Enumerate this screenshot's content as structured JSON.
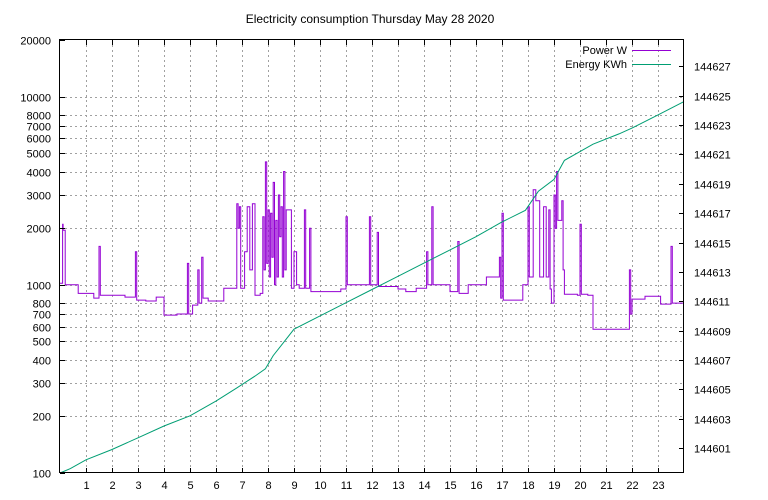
{
  "chart_data": {
    "type": "line",
    "title": "Electricity consumption Thursday May 28 2020",
    "xlabel": "",
    "ylabel": "",
    "y2label": "",
    "xlim": [
      0,
      24
    ],
    "ylim": [
      100,
      20000
    ],
    "y2lim": [
      144599.3,
      144628.8
    ],
    "yscale": "log",
    "grid": true,
    "legend_position": "top-right",
    "x_ticks": [
      "1",
      "2",
      "3",
      "4",
      "5",
      "6",
      "7",
      "8",
      "9",
      "10",
      "11",
      "12",
      "13",
      "14",
      "15",
      "16",
      "17",
      "18",
      "19",
      "20",
      "21",
      "22",
      "23"
    ],
    "y_ticks": [
      {
        "value": 100,
        "label": "100"
      },
      {
        "value": 200,
        "label": "200"
      },
      {
        "value": 300,
        "label": "300"
      },
      {
        "value": 400,
        "label": "400"
      },
      {
        "value": 500,
        "label": "500"
      },
      {
        "value": 600,
        "label": "600"
      },
      {
        "value": 700,
        "label": "700"
      },
      {
        "value": 800,
        "label": "800"
      },
      {
        "value": 1000,
        "label": "1000"
      },
      {
        "value": 2000,
        "label": "2000"
      },
      {
        "value": 3000,
        "label": "3000"
      },
      {
        "value": 4000,
        "label": "4000"
      },
      {
        "value": 5000,
        "label": "5000"
      },
      {
        "value": 6000,
        "label": "6000"
      },
      {
        "value": 7000,
        "label": "7000"
      },
      {
        "value": 8000,
        "label": "8000"
      },
      {
        "value": 10000,
        "label": "10000"
      },
      {
        "value": 20000,
        "label": "20000"
      }
    ],
    "y2_ticks": [
      {
        "value": 144601,
        "label": "144601"
      },
      {
        "value": 144603,
        "label": "144603"
      },
      {
        "value": 144605,
        "label": "144605"
      },
      {
        "value": 144607,
        "label": "144607"
      },
      {
        "value": 144609,
        "label": "144609"
      },
      {
        "value": 144611,
        "label": "144611"
      },
      {
        "value": 144613,
        "label": "144613"
      },
      {
        "value": 144615,
        "label": "144615"
      },
      {
        "value": 144617,
        "label": "144617"
      },
      {
        "value": 144619,
        "label": "144619"
      },
      {
        "value": 144621,
        "label": "144621"
      },
      {
        "value": 144623,
        "label": "144623"
      },
      {
        "value": 144625,
        "label": "144625"
      },
      {
        "value": 144627,
        "label": "144627"
      }
    ],
    "series": [
      {
        "name": "Power W",
        "color": "#9400d3",
        "axis": "y",
        "step": true,
        "points": [
          [
            0,
            1020
          ],
          [
            0.1,
            2100
          ],
          [
            0.12,
            1950
          ],
          [
            0.2,
            1000
          ],
          [
            0.7,
            900
          ],
          [
            1.3,
            850
          ],
          [
            1.5,
            1600
          ],
          [
            1.55,
            880
          ],
          [
            2.0,
            880
          ],
          [
            2.5,
            860
          ],
          [
            2.9,
            1500
          ],
          [
            2.95,
            830
          ],
          [
            3.3,
            820
          ],
          [
            3.7,
            860
          ],
          [
            4.0,
            690
          ],
          [
            4.5,
            700
          ],
          [
            4.9,
            1300
          ],
          [
            4.95,
            700
          ],
          [
            5.1,
            780
          ],
          [
            5.3,
            1200
          ],
          [
            5.35,
            800
          ],
          [
            5.45,
            1400
          ],
          [
            5.5,
            850
          ],
          [
            5.7,
            820
          ],
          [
            6.3,
            960
          ],
          [
            6.8,
            2700
          ],
          [
            6.85,
            2000
          ],
          [
            6.9,
            2600
          ],
          [
            6.95,
            960
          ],
          [
            7.1,
            1500
          ],
          [
            7.2,
            2600
          ],
          [
            7.3,
            1200
          ],
          [
            7.4,
            2700
          ],
          [
            7.5,
            880
          ],
          [
            7.7,
            900
          ],
          [
            7.8,
            2300
          ],
          [
            7.85,
            1200
          ],
          [
            7.9,
            4500
          ],
          [
            7.95,
            1300
          ],
          [
            8.0,
            2500
          ],
          [
            8.05,
            1100
          ],
          [
            8.1,
            2400
          ],
          [
            8.15,
            1400
          ],
          [
            8.2,
            3500
          ],
          [
            8.25,
            1000
          ],
          [
            8.3,
            2200
          ],
          [
            8.35,
            1100
          ],
          [
            8.4,
            3000
          ],
          [
            8.45,
            1800
          ],
          [
            8.5,
            2600
          ],
          [
            8.55,
            1100
          ],
          [
            8.6,
            4000
          ],
          [
            8.65,
            1200
          ],
          [
            8.7,
            2500
          ],
          [
            8.8,
            2500
          ],
          [
            8.9,
            960
          ],
          [
            9.0,
            1500
          ],
          [
            9.1,
            1000
          ],
          [
            9.2,
            960
          ],
          [
            9.4,
            2500
          ],
          [
            9.45,
            960
          ],
          [
            9.6,
            2000
          ],
          [
            9.65,
            920
          ],
          [
            10.2,
            920
          ],
          [
            10.8,
            950
          ],
          [
            11.0,
            2300
          ],
          [
            11.05,
            1000
          ],
          [
            11.9,
            2300
          ],
          [
            11.95,
            1000
          ],
          [
            12.2,
            1900
          ],
          [
            12.25,
            980
          ],
          [
            12.5,
            980
          ],
          [
            13.0,
            950
          ],
          [
            13.3,
            920
          ],
          [
            13.7,
            960
          ],
          [
            14.1,
            1500
          ],
          [
            14.15,
            1000
          ],
          [
            14.3,
            2600
          ],
          [
            14.35,
            1000
          ],
          [
            14.8,
            1000
          ],
          [
            15.0,
            920
          ],
          [
            15.3,
            1700
          ],
          [
            15.35,
            900
          ],
          [
            15.7,
            1000
          ],
          [
            16.0,
            1000
          ],
          [
            16.4,
            1100
          ],
          [
            16.9,
            1400
          ],
          [
            16.95,
            850
          ],
          [
            17.0,
            2400
          ],
          [
            17.05,
            830
          ],
          [
            17.4,
            830
          ],
          [
            17.8,
            1000
          ],
          [
            18.0,
            2600
          ],
          [
            18.05,
            1100
          ],
          [
            18.2,
            3200
          ],
          [
            18.3,
            2800
          ],
          [
            18.45,
            1100
          ],
          [
            18.6,
            2600
          ],
          [
            18.7,
            1100
          ],
          [
            18.8,
            2500
          ],
          [
            18.85,
            950
          ],
          [
            18.9,
            800
          ],
          [
            19.0,
            3000
          ],
          [
            19.05,
            2000
          ],
          [
            19.1,
            4000
          ],
          [
            19.15,
            2200
          ],
          [
            19.3,
            2800
          ],
          [
            19.35,
            1200
          ],
          [
            19.4,
            890
          ],
          [
            19.9,
            880
          ],
          [
            20.0,
            2100
          ],
          [
            20.05,
            890
          ],
          [
            20.3,
            880
          ],
          [
            20.5,
            580
          ],
          [
            21.5,
            580
          ],
          [
            21.9,
            1200
          ],
          [
            21.95,
            700
          ],
          [
            22.0,
            840
          ],
          [
            22.5,
            870
          ],
          [
            23.1,
            790
          ],
          [
            23.5,
            1600
          ],
          [
            23.55,
            800
          ],
          [
            24,
            800
          ]
        ]
      },
      {
        "name": "Energy KWh",
        "color": "#009e73",
        "axis": "y2",
        "step": false,
        "points": [
          [
            0,
            144599.3
          ],
          [
            0.4,
            144599.6
          ],
          [
            1.0,
            144600.2
          ],
          [
            2.0,
            144600.9
          ],
          [
            3.0,
            144601.7
          ],
          [
            4.0,
            144602.5
          ],
          [
            5.0,
            144603.2
          ],
          [
            6.0,
            144604.2
          ],
          [
            6.8,
            144605.1
          ],
          [
            7.5,
            144605.9
          ],
          [
            7.9,
            144606.4
          ],
          [
            8.2,
            144607.3
          ],
          [
            8.6,
            144608.2
          ],
          [
            9.0,
            144609.1
          ],
          [
            10.0,
            144610.0
          ],
          [
            11.0,
            144610.9
          ],
          [
            12.0,
            144611.8
          ],
          [
            13.0,
            144612.7
          ],
          [
            14.0,
            144613.6
          ],
          [
            15.0,
            144614.5
          ],
          [
            16.0,
            144615.4
          ],
          [
            17.0,
            144616.4
          ],
          [
            17.9,
            144617.2
          ],
          [
            18.4,
            144618.5
          ],
          [
            19.0,
            144619.3
          ],
          [
            19.4,
            144620.6
          ],
          [
            20.0,
            144621.2
          ],
          [
            20.5,
            144621.7
          ],
          [
            21.5,
            144622.4
          ],
          [
            22.0,
            144622.8
          ],
          [
            23.0,
            144623.7
          ],
          [
            24,
            144624.6
          ]
        ]
      }
    ]
  }
}
